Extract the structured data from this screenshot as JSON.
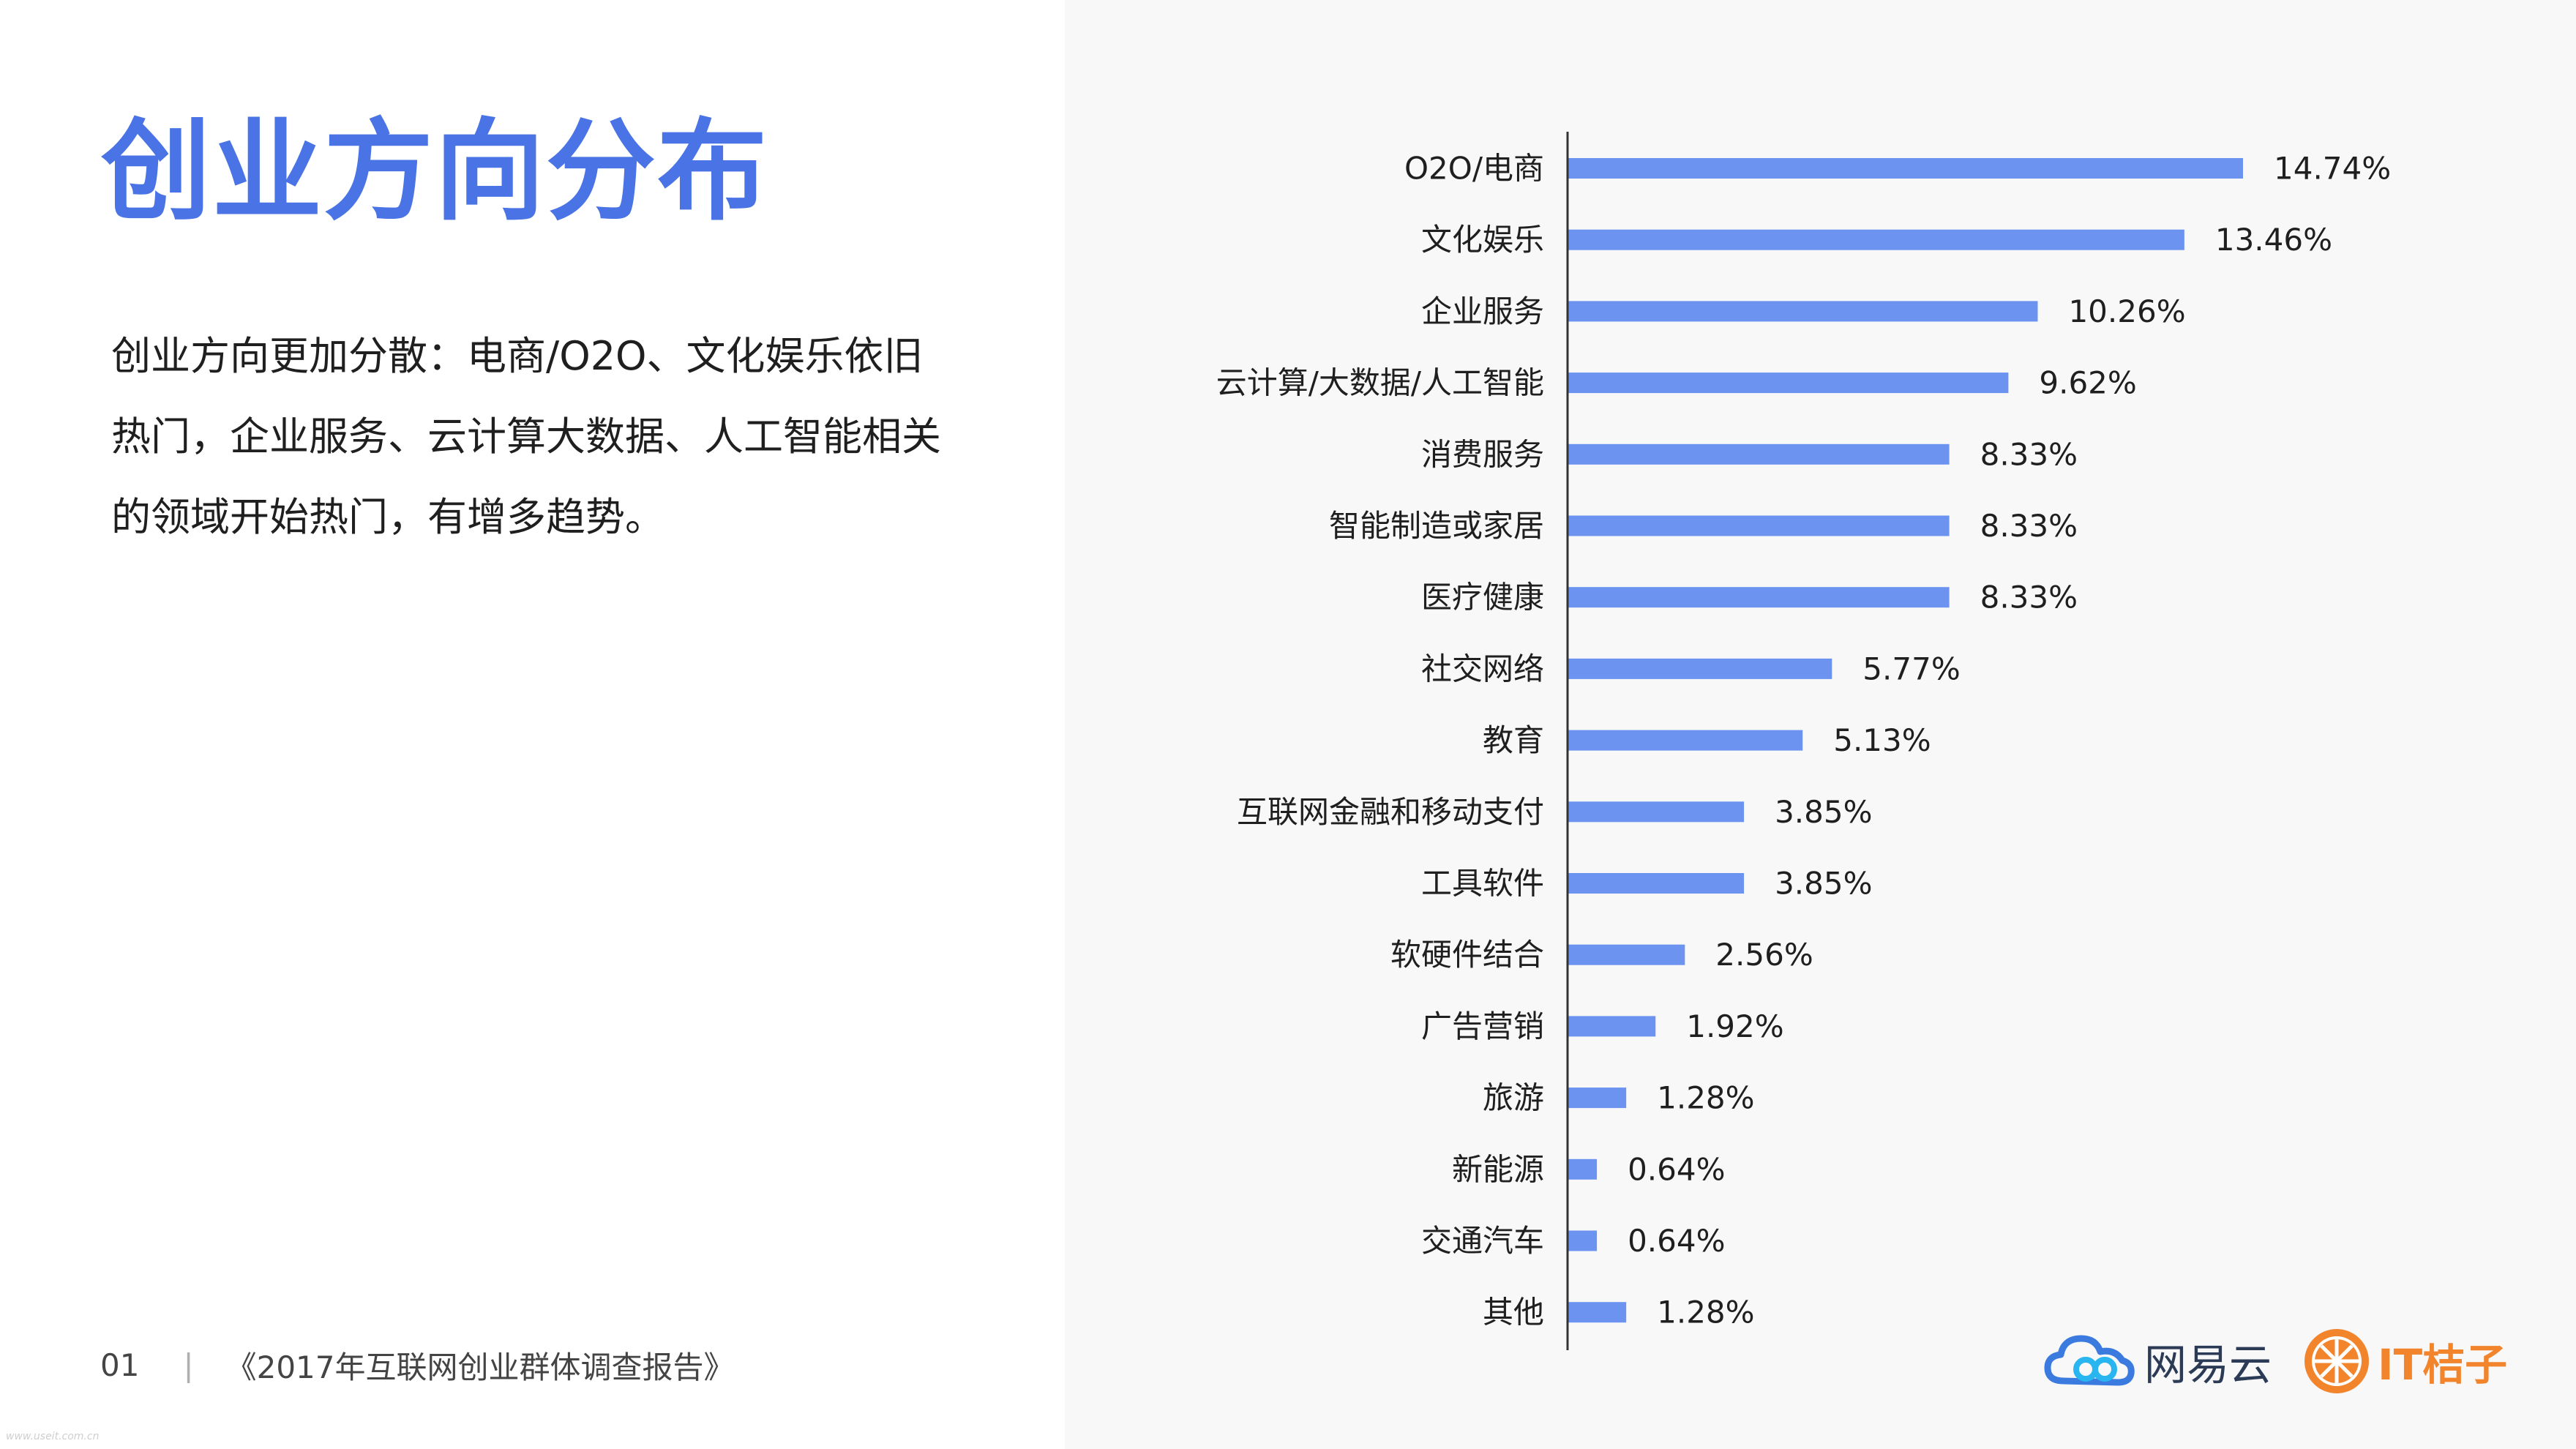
{
  "page": {
    "title": "创业方向分布",
    "description": "创业方向更加分散：电商/O2O、文化娱乐依旧热门，企业服务、云计算大数据、人工智能相关的领域开始热门，有增多趋势。",
    "footer_page": "01",
    "footer_separator": "|",
    "footer_report": "《2017年互联网创业群体调查报告》",
    "watermark": "www.useit.com.cn"
  },
  "logos": {
    "wangyi": {
      "text": "网易云",
      "icon": "cloud-logo-icon"
    },
    "it": {
      "text": "IT桔子",
      "icon": "orange-slice-logo-icon"
    }
  },
  "colors": {
    "title": "#4a74e5",
    "bar": "#6b93ef",
    "panel": "#f8f8f9",
    "it_logo": "#f2842b"
  },
  "chart_data": {
    "type": "bar",
    "orientation": "horizontal",
    "categories": [
      "O2O/电商",
      "文化娱乐",
      "企业服务",
      "云计算/大数据/人工智能",
      "消费服务",
      "智能制造或家居",
      "医疗健康",
      "社交网络",
      "教育",
      "互联网金融和移动支付",
      "工具软件",
      "软硬件结合",
      "广告营销",
      "旅游",
      "新能源",
      "交通汽车",
      "其他"
    ],
    "values": [
      14.74,
      13.46,
      10.26,
      9.62,
      8.33,
      8.33,
      8.33,
      5.77,
      5.13,
      3.85,
      3.85,
      2.56,
      1.92,
      1.28,
      0.64,
      0.64,
      1.28
    ],
    "value_labels": [
      "14.74%",
      "13.46%",
      "10.26%",
      "9.62%",
      "8.33%",
      "8.33%",
      "8.33%",
      "5.77%",
      "5.13%",
      "3.85%",
      "3.85%",
      "2.56%",
      "1.92%",
      "1.28%",
      "0.64%",
      "0.64%",
      "1.28%"
    ],
    "xlim": [
      0,
      14.74
    ],
    "grid": false,
    "legend": "none"
  }
}
